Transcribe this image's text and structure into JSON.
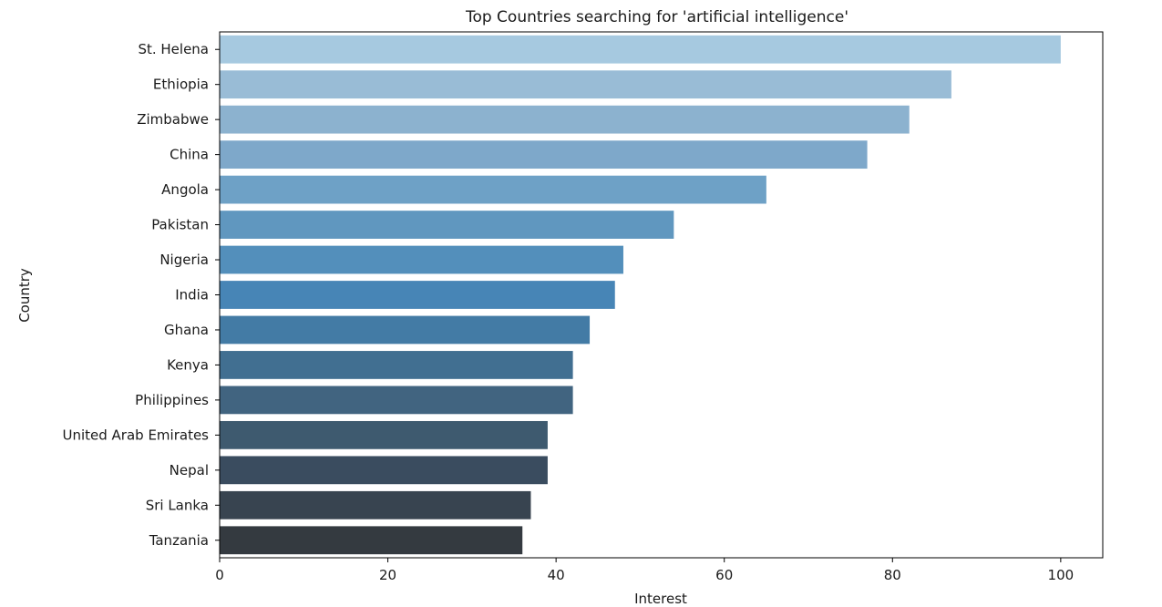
{
  "chart_data": {
    "type": "bar",
    "orientation": "horizontal",
    "title": "Top Countries searching for 'artificial intelligence'",
    "xlabel": "Interest",
    "ylabel": "Country",
    "xlim": [
      0,
      105
    ],
    "x_ticks": [
      0,
      20,
      40,
      60,
      80,
      100
    ],
    "grid": false,
    "categories": [
      "St. Helena",
      "Ethiopia",
      "Zimbabwe",
      "China",
      "Angola",
      "Pakistan",
      "Nigeria",
      "India",
      "Ghana",
      "Kenya",
      "Philippines",
      "United Arab Emirates",
      "Nepal",
      "Sri Lanka",
      "Tanzania"
    ],
    "values": [
      100,
      87,
      82,
      77,
      65,
      54,
      48,
      47,
      44,
      42,
      42,
      39,
      39,
      37,
      36
    ],
    "colors": [
      "#a6c9e0",
      "#99bcd6",
      "#8cb2cf",
      "#7ea8ca",
      "#6ea1c6",
      "#6097bf",
      "#538fbb",
      "#4785b6",
      "#437ba5",
      "#416f91",
      "#416480",
      "#3e5a6f",
      "#3a4c5f",
      "#384450",
      "#343a40"
    ]
  }
}
